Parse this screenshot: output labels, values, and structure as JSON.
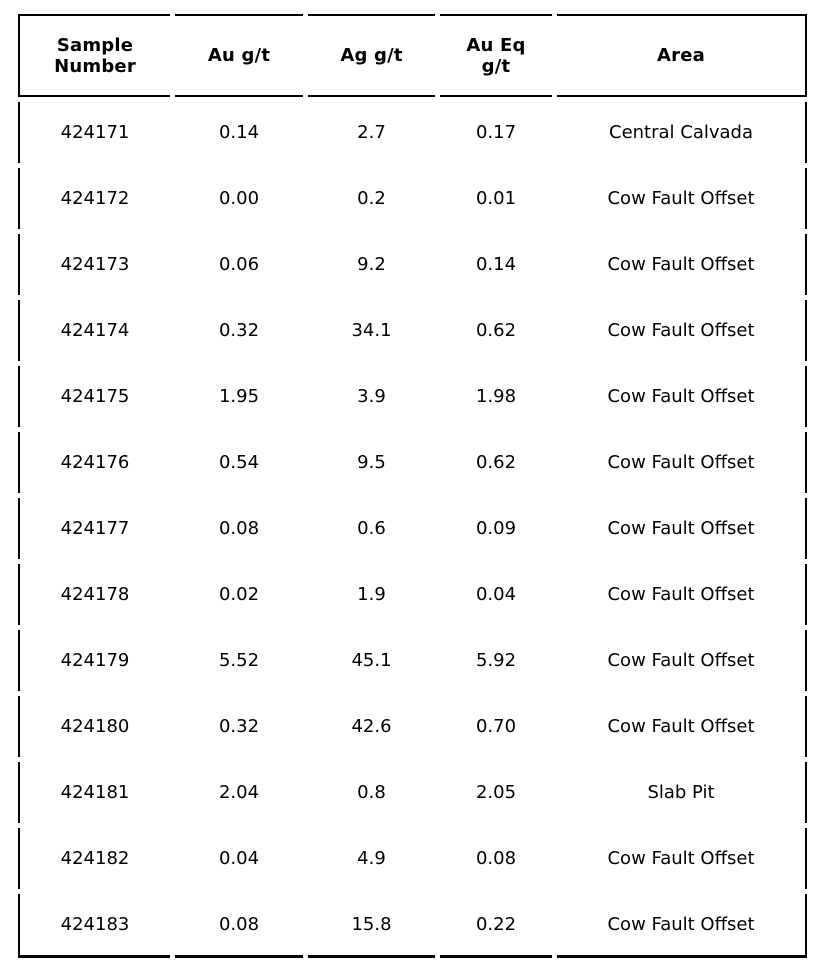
{
  "colors": {
    "background": "#ffffff",
    "border": "#000000",
    "text": "#000000"
  },
  "chart_data": {
    "type": "table",
    "columns": [
      {
        "key": "sample-number",
        "label": "Sample\nNumber"
      },
      {
        "key": "au-gt",
        "label": "Au g/t"
      },
      {
        "key": "ag-gt",
        "label": "Ag g/t"
      },
      {
        "key": "au-eq-gt",
        "label": "Au Eq\ng/t"
      },
      {
        "key": "area",
        "label": "Area"
      }
    ],
    "rows": [
      [
        "424171",
        "0.14",
        "2.7",
        "0.17",
        "Central Calvada"
      ],
      [
        "424172",
        "0.00",
        "0.2",
        "0.01",
        "Cow Fault Offset"
      ],
      [
        "424173",
        "0.06",
        "9.2",
        "0.14",
        "Cow Fault Offset"
      ],
      [
        "424174",
        "0.32",
        "34.1",
        "0.62",
        "Cow Fault Offset"
      ],
      [
        "424175",
        "1.95",
        "3.9",
        "1.98",
        "Cow Fault Offset"
      ],
      [
        "424176",
        "0.54",
        "9.5",
        "0.62",
        "Cow Fault Offset"
      ],
      [
        "424177",
        "0.08",
        "0.6",
        "0.09",
        "Cow Fault Offset"
      ],
      [
        "424178",
        "0.02",
        "1.9",
        "0.04",
        "Cow Fault Offset"
      ],
      [
        "424179",
        "5.52",
        "45.1",
        "5.92",
        "Cow Fault Offset"
      ],
      [
        "424180",
        "0.32",
        "42.6",
        "0.70",
        "Cow Fault Offset"
      ],
      [
        "424181",
        "2.04",
        "0.8",
        "2.05",
        "Slab Pit"
      ],
      [
        "424182",
        "0.04",
        "4.9",
        "0.08",
        "Cow Fault Offset"
      ],
      [
        "424183",
        "0.08",
        "15.8",
        "0.22",
        "Cow Fault Offset"
      ]
    ]
  }
}
